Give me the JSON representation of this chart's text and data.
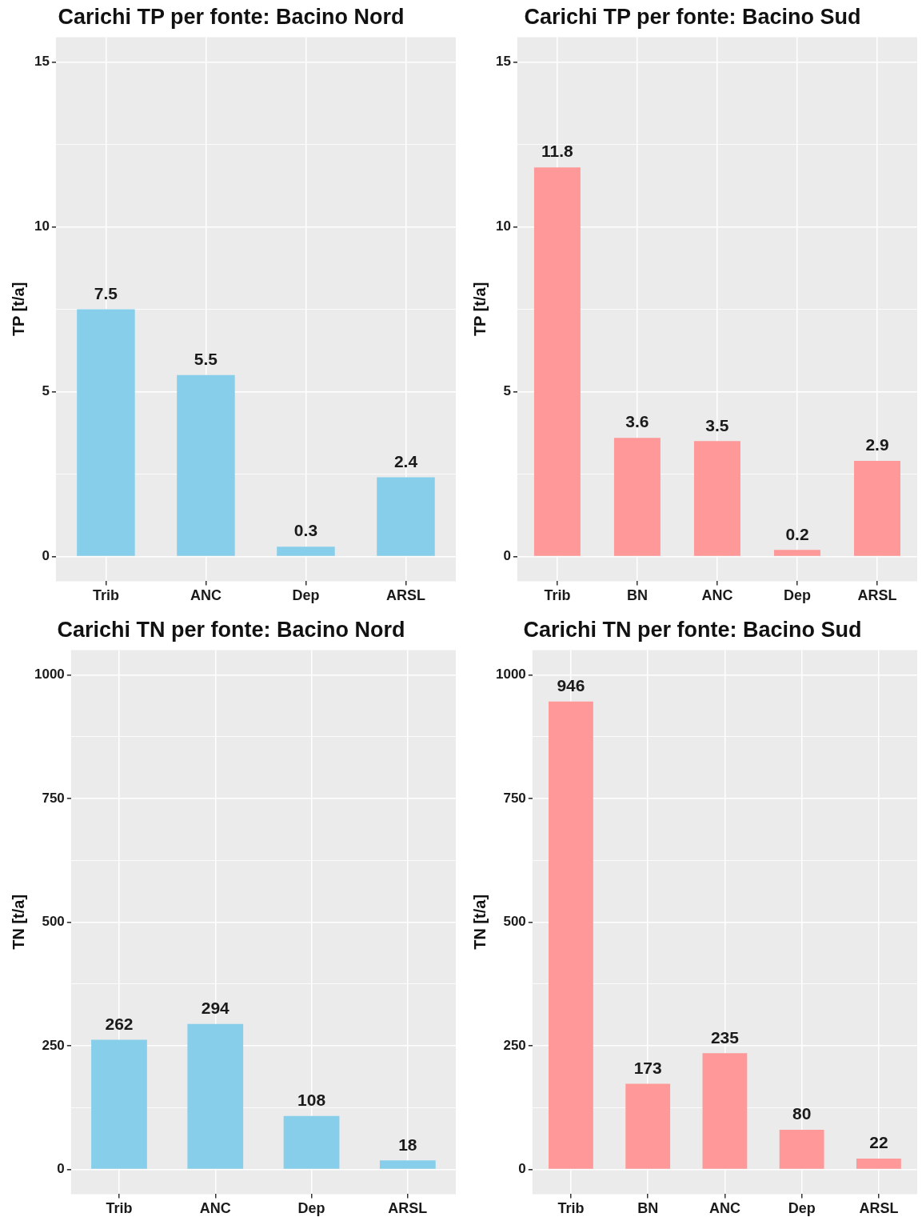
{
  "chart_data": [
    {
      "type": "bar",
      "title": "Carichi TP per fonte: Bacino Nord",
      "ylabel": "TP [t/a]",
      "categories": [
        "Trib",
        "ANC",
        "Dep",
        "ARSL"
      ],
      "values": [
        7.5,
        5.5,
        0.3,
        2.4
      ],
      "color": "#87ceeb",
      "ylim": [
        -0.75,
        15.75
      ],
      "yticks": [
        0,
        {
          "value": 2.5,
          "label": null
        },
        5,
        {
          "value": 7.5,
          "label": null
        },
        10,
        {
          "value": 12.5,
          "label": null
        },
        15
      ],
      "grid": true,
      "data_labels": true
    },
    {
      "type": "bar",
      "title": "Carichi TP per fonte: Bacino Sud",
      "ylabel": "TP [t/a]",
      "categories": [
        "Trib",
        "BN",
        "ANC",
        "Dep",
        "ARSL"
      ],
      "values": [
        11.8,
        3.6,
        3.5,
        0.2,
        2.9
      ],
      "color": "#ff9999",
      "ylim": [
        -0.75,
        15.75
      ],
      "yticks": [
        0,
        {
          "value": 2.5,
          "label": null
        },
        5,
        {
          "value": 7.5,
          "label": null
        },
        10,
        {
          "value": 12.5,
          "label": null
        },
        15
      ],
      "grid": true,
      "data_labels": true
    },
    {
      "type": "bar",
      "title": "Carichi TN per fonte: Bacino Nord",
      "ylabel": "TN [t/a]",
      "categories": [
        "Trib",
        "ANC",
        "Dep",
        "ARSL"
      ],
      "values": [
        262,
        294,
        108,
        18
      ],
      "color": "#87ceeb",
      "ylim": [
        -50,
        1050
      ],
      "yticks": [
        0,
        {
          "value": 125,
          "label": null
        },
        250,
        {
          "value": 375,
          "label": null
        },
        500,
        {
          "value": 625,
          "label": null
        },
        750,
        {
          "value": 875,
          "label": null
        },
        1000
      ],
      "grid": true,
      "data_labels": true
    },
    {
      "type": "bar",
      "title": "Carichi TN per fonte: Bacino Sud",
      "ylabel": "TN [t/a]",
      "categories": [
        "Trib",
        "BN",
        "ANC",
        "Dep",
        "ARSL"
      ],
      "values": [
        946,
        173,
        235,
        80,
        22
      ],
      "color": "#ff9999",
      "ylim": [
        -50,
        1050
      ],
      "yticks": [
        0,
        {
          "value": 125,
          "label": null
        },
        250,
        {
          "value": 375,
          "label": null
        },
        500,
        {
          "value": 625,
          "label": null
        },
        750,
        {
          "value": 875,
          "label": null
        },
        1000
      ],
      "grid": true,
      "data_labels": true
    }
  ]
}
